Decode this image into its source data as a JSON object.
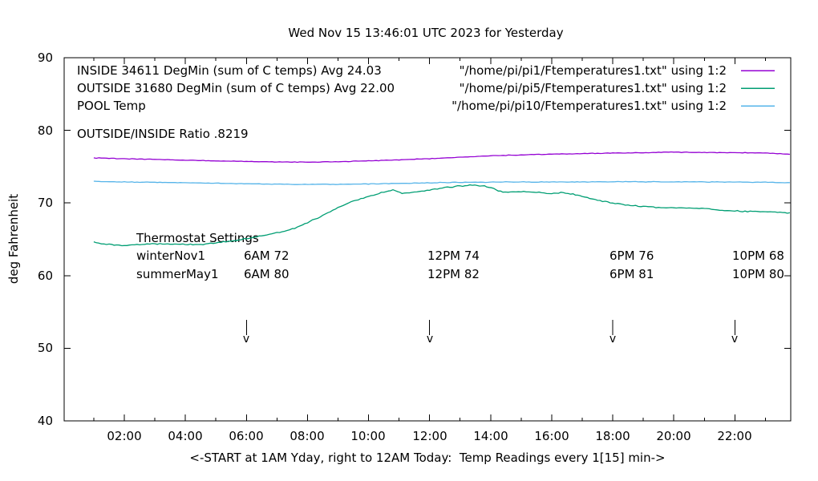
{
  "title": "Wed Nov 15 13:46:01 UTC 2023 for Yesterday",
  "legend": {
    "rows": [
      {
        "label": "INSIDE 34611 DegMin (sum of C temps) Avg 24.03",
        "source": "\"/home/pi/pi1/Ftemperatures1.txt\" using 1:2",
        "color": "#9400d3"
      },
      {
        "label": "OUTSIDE 31680 DegMin (sum of C temps) Avg 22.00",
        "source": "\"/home/pi/pi5/Ftemperatures1.txt\" using 1:2",
        "color": "#009e73"
      },
      {
        "label": "POOL Temp",
        "source": "\"/home/pi/pi10/Ftemperatures1.txt\" using 1:2",
        "color": "#56b4e9"
      }
    ]
  },
  "annotations": {
    "ratio": "OUTSIDE/INSIDE Ratio .8219",
    "thermostat": {
      "heading": "Thermostat Settings",
      "rows": [
        {
          "name": "winterNov1",
          "settings": [
            "6AM 72",
            "12PM 74",
            "6PM 76",
            "10PM 68"
          ]
        },
        {
          "name": "summerMay1",
          "settings": [
            "6AM 80",
            "12PM 82",
            "6PM 81",
            "10PM 80"
          ]
        }
      ]
    }
  },
  "chart_data": {
    "type": "line",
    "title": "Wed Nov 15 13:46:01 UTC 2023 for Yesterday",
    "xlabel": "<-START at 1AM Yday, right to 12AM Today:  Temp Readings every 1[15] min->",
    "ylabel": "deg Fahrenheit",
    "xlim": [
      0.03,
      23.83
    ],
    "ylim": [
      40,
      90
    ],
    "grid": false,
    "legend_position": "top-right-inside",
    "x_ticks": [
      {
        "label": "02:00",
        "hour": 2
      },
      {
        "label": "04:00",
        "hour": 4
      },
      {
        "label": "06:00",
        "hour": 6
      },
      {
        "label": "08:00",
        "hour": 8
      },
      {
        "label": "10:00",
        "hour": 10
      },
      {
        "label": "12:00",
        "hour": 12
      },
      {
        "label": "14:00",
        "hour": 14
      },
      {
        "label": "16:00",
        "hour": 16
      },
      {
        "label": "18:00",
        "hour": 18
      },
      {
        "label": "20:00",
        "hour": 20
      },
      {
        "label": "22:00",
        "hour": 22
      }
    ],
    "y_ticks": [
      {
        "label": "90",
        "value": 90
      },
      {
        "label": "80",
        "value": 80
      },
      {
        "label": "70",
        "value": 70
      },
      {
        "label": "60",
        "value": 60
      },
      {
        "label": "50",
        "value": 50
      },
      {
        "label": "40",
        "value": 40
      }
    ],
    "series": [
      {
        "name": "INSIDE",
        "color": "#9400d3",
        "points": [
          [
            1,
            76.2
          ],
          [
            2,
            76.1
          ],
          [
            3,
            76.0
          ],
          [
            4,
            75.9
          ],
          [
            5,
            75.8
          ],
          [
            6,
            75.72
          ],
          [
            7,
            75.65
          ],
          [
            8,
            75.62
          ],
          [
            9,
            75.68
          ],
          [
            10,
            75.8
          ],
          [
            11,
            75.95
          ],
          [
            12,
            76.1
          ],
          [
            13,
            76.3
          ],
          [
            14,
            76.5
          ],
          [
            15,
            76.62
          ],
          [
            16,
            76.72
          ],
          [
            17,
            76.8
          ],
          [
            18,
            76.88
          ],
          [
            19,
            76.92
          ],
          [
            20,
            77.0
          ],
          [
            21,
            76.95
          ],
          [
            22,
            76.92
          ],
          [
            23,
            76.9
          ],
          [
            23.8,
            76.7
          ]
        ]
      },
      {
        "name": "OUTSIDE",
        "color": "#009e73",
        "points": [
          [
            1,
            64.6
          ],
          [
            1.5,
            64.25
          ],
          [
            2,
            64.15
          ],
          [
            2.5,
            64.3
          ],
          [
            3,
            64.4
          ],
          [
            3.5,
            64.35
          ],
          [
            4,
            64.3
          ],
          [
            4.5,
            64.3
          ],
          [
            5,
            64.5
          ],
          [
            5.5,
            64.75
          ],
          [
            6,
            65.1
          ],
          [
            6.5,
            65.5
          ],
          [
            7,
            65.9
          ],
          [
            7.5,
            66.4
          ],
          [
            8,
            67.3
          ],
          [
            8.5,
            68.3
          ],
          [
            9,
            69.4
          ],
          [
            9.5,
            70.3
          ],
          [
            10,
            70.9
          ],
          [
            10.5,
            71.5
          ],
          [
            10.8,
            71.8
          ],
          [
            11.1,
            71.3
          ],
          [
            11.5,
            71.5
          ],
          [
            12,
            71.8
          ],
          [
            12.5,
            72.1
          ],
          [
            13,
            72.35
          ],
          [
            13.4,
            72.45
          ],
          [
            13.8,
            72.3
          ],
          [
            14.1,
            72.0
          ],
          [
            14.4,
            71.45
          ],
          [
            15,
            71.55
          ],
          [
            15.5,
            71.5
          ],
          [
            16,
            71.3
          ],
          [
            16.3,
            71.4
          ],
          [
            16.7,
            71.2
          ],
          [
            17,
            70.9
          ],
          [
            17.5,
            70.4
          ],
          [
            18,
            70.0
          ],
          [
            18.5,
            69.7
          ],
          [
            19,
            69.5
          ],
          [
            19.5,
            69.4
          ],
          [
            20,
            69.35
          ],
          [
            20.5,
            69.3
          ],
          [
            21,
            69.25
          ],
          [
            21.5,
            69.0
          ],
          [
            22,
            68.9
          ],
          [
            22.5,
            68.85
          ],
          [
            23,
            68.8
          ],
          [
            23.8,
            68.65
          ]
        ]
      },
      {
        "name": "POOL",
        "color": "#56b4e9",
        "points": [
          [
            1,
            73.0
          ],
          [
            2,
            72.9
          ],
          [
            3,
            72.85
          ],
          [
            4,
            72.8
          ],
          [
            5,
            72.72
          ],
          [
            6,
            72.65
          ],
          [
            7,
            72.6
          ],
          [
            8,
            72.55
          ],
          [
            9,
            72.58
          ],
          [
            10,
            72.62
          ],
          [
            11,
            72.7
          ],
          [
            12,
            72.78
          ],
          [
            13,
            72.85
          ],
          [
            14,
            72.88
          ],
          [
            15,
            72.9
          ],
          [
            16,
            72.9
          ],
          [
            17,
            72.9
          ],
          [
            18,
            72.92
          ],
          [
            19,
            72.92
          ],
          [
            20,
            72.9
          ],
          [
            21,
            72.9
          ],
          [
            22,
            72.88
          ],
          [
            23,
            72.85
          ],
          [
            23.8,
            72.8
          ]
        ]
      }
    ],
    "markers": {
      "glyph": "v",
      "hours": [
        6,
        12,
        18,
        22
      ],
      "y_top_deg": 53.9,
      "y_bottom_deg": 51.8
    }
  }
}
